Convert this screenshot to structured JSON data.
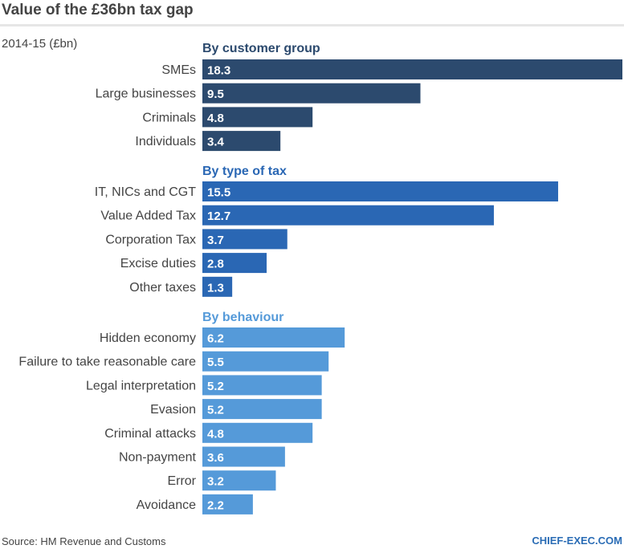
{
  "title": "Value of the £36bn tax gap",
  "subtitle": "2014-15 (£bn)",
  "source": "Source: HM Revenue and Customs",
  "brand": "CHIEF-EXEC.COM",
  "chart_data": {
    "type": "bar",
    "orientation": "horizontal",
    "title": "Value of the £36bn tax gap",
    "ylabel": "2014-15 (£bn)",
    "xlim": [
      0,
      18.3
    ],
    "grid": false,
    "groups": [
      {
        "name": "By customer group",
        "color": "#2c4a6e",
        "categories": [
          "SMEs",
          "Large businesses",
          "Criminals",
          "Individuals"
        ],
        "values": [
          18.3,
          9.5,
          4.8,
          3.4
        ],
        "labels": [
          "18.3",
          "9.5",
          "4.8",
          "3.4"
        ]
      },
      {
        "name": "By type of tax",
        "color": "#2a67b4",
        "categories": [
          "IT, NICs and CGT",
          "Value Added Tax",
          "Corporation Tax",
          "Excise duties",
          "Other taxes"
        ],
        "values": [
          15.5,
          12.7,
          3.7,
          2.8,
          1.3
        ],
        "labels": [
          "15.5",
          "12.7",
          "3.7",
          "2.8",
          "1.3"
        ]
      },
      {
        "name": "By behaviour",
        "color": "#559ad9",
        "categories": [
          "Hidden economy",
          "Failure to take reasonable care",
          "Legal interpretation",
          "Evasion",
          "Criminal attacks",
          "Non-payment",
          "Error",
          "Avoidance"
        ],
        "values": [
          6.2,
          5.5,
          5.2,
          5.2,
          4.8,
          3.6,
          3.2,
          2.2
        ],
        "labels": [
          "6.2",
          "5.5",
          "5.2",
          "5.2",
          "4.8",
          "3.6",
          "3.2",
          "2.2"
        ]
      }
    ]
  }
}
